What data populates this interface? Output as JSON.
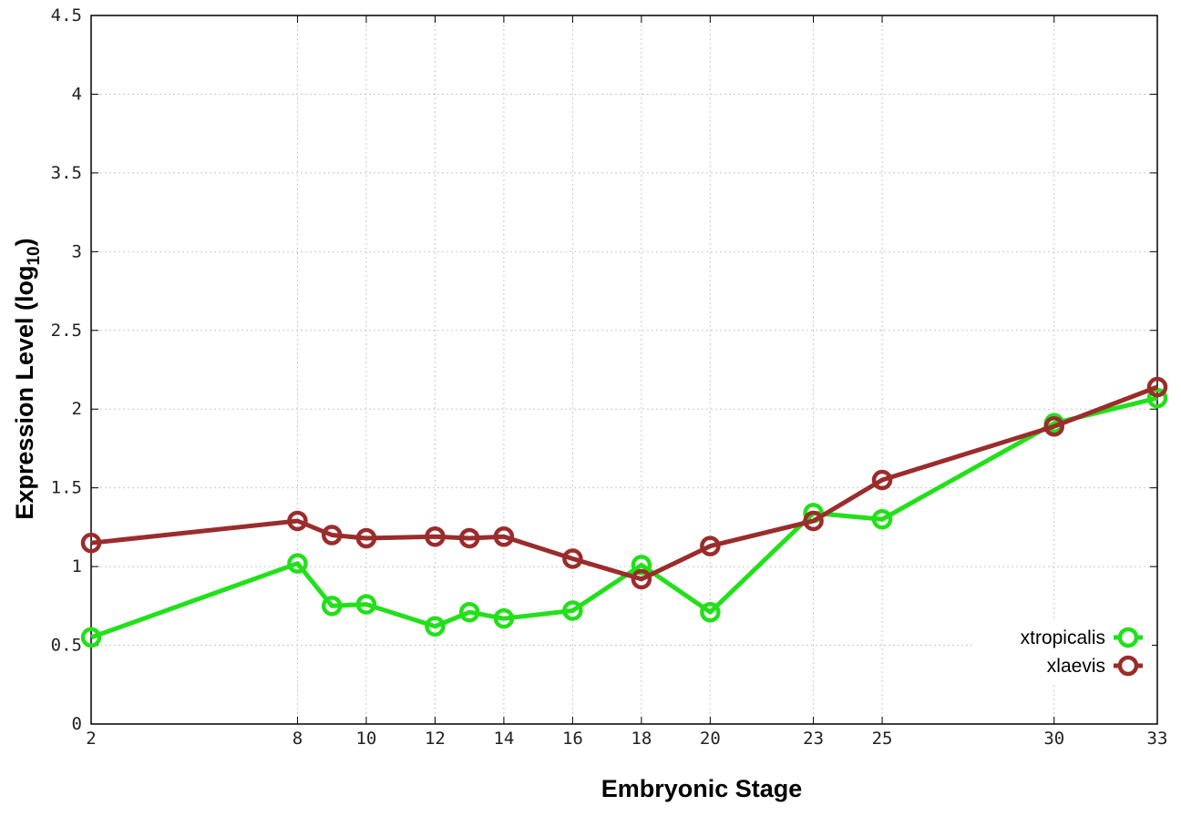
{
  "chart_data": {
    "type": "line",
    "title": "",
    "xlabel": "Embryonic Stage",
    "ylabel": {
      "text": "Expression Level (log",
      "subscript": "10",
      "suffix": ")"
    },
    "x": [
      2,
      8,
      9,
      10,
      12,
      13,
      14,
      16,
      18,
      20,
      23,
      25,
      30,
      33
    ],
    "x_tick_labels": [
      "2",
      "8",
      "10",
      "12",
      "14",
      "16",
      "18",
      "20",
      "23",
      "25",
      "30",
      "33"
    ],
    "y_tick_labels": [
      "0",
      "0.5",
      "1",
      "1.5",
      "2",
      "2.5",
      "3",
      "3.5",
      "4",
      "4.5"
    ],
    "xlim": [
      2,
      33
    ],
    "ylim": [
      0,
      4.5
    ],
    "grid": true,
    "legend_position": "bottom-right",
    "series": [
      {
        "name": "xtropicalis",
        "color": "#22e01a",
        "marker": "open-circle",
        "values": [
          0.55,
          1.02,
          0.75,
          0.76,
          0.62,
          0.71,
          0.67,
          0.72,
          1.01,
          0.71,
          1.34,
          1.3,
          1.91,
          2.07
        ]
      },
      {
        "name": "xlaevis",
        "color": "#9b2c2c",
        "marker": "open-circle",
        "values": [
          1.15,
          1.29,
          1.2,
          1.18,
          1.19,
          1.18,
          1.19,
          1.05,
          0.92,
          1.13,
          1.29,
          1.55,
          1.89,
          2.14
        ]
      }
    ]
  }
}
